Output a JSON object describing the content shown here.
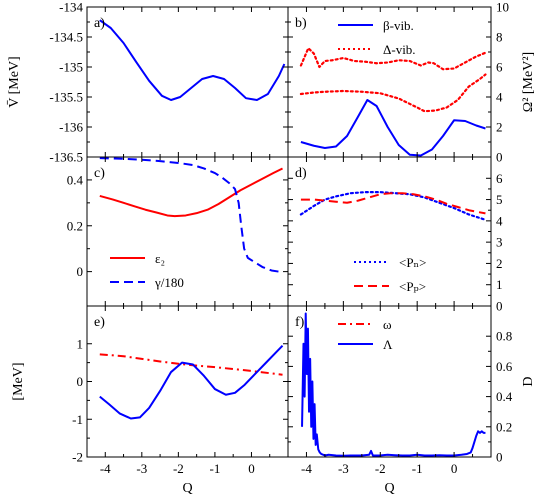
{
  "chart_data": [
    {
      "panel": "a)",
      "type": "line",
      "xlim": [
        -4.5,
        1.0
      ],
      "ylim": [
        -136.5,
        -134
      ],
      "yticks": [
        "-134",
        "-134.5",
        "-135",
        "-135.5",
        "-136",
        "-136.5"
      ],
      "ytick_values": [
        -134,
        -134.5,
        -135,
        -135.5,
        -136,
        -136.5
      ],
      "ylabel": "V̄ [MeV]",
      "series": [
        {
          "color": "#0000ff",
          "dash": "solid",
          "x": [
            -4.15,
            -3.85,
            -3.5,
            -3.15,
            -2.8,
            -2.45,
            -2.2,
            -1.95,
            -1.65,
            -1.35,
            -1.05,
            -0.75,
            -0.45,
            -0.15,
            0.15,
            0.45,
            0.75,
            0.9
          ],
          "y": [
            -134.22,
            -134.35,
            -134.6,
            -134.92,
            -135.23,
            -135.48,
            -135.55,
            -135.5,
            -135.35,
            -135.2,
            -135.15,
            -135.2,
            -135.35,
            -135.52,
            -135.55,
            -135.45,
            -135.15,
            -134.95
          ]
        }
      ]
    },
    {
      "panel": "b)",
      "type": "line",
      "xlim": [
        -4.5,
        1.0
      ],
      "ylim": [
        0,
        10
      ],
      "yticks": [
        "0",
        "2",
        "4",
        "6",
        "8",
        "10"
      ],
      "ytick_values": [
        0,
        2,
        4,
        6,
        8,
        10
      ],
      "ylabel": "Ω² [MeV²]",
      "legend_position": "top-right",
      "series": [
        {
          "name": "β-vib.",
          "color": "#0000ff",
          "dash": "solid",
          "x": [
            -4.15,
            -3.8,
            -3.5,
            -3.2,
            -2.9,
            -2.6,
            -2.35,
            -2.1,
            -1.8,
            -1.5,
            -1.2,
            -0.9,
            -0.6,
            -0.3,
            0,
            0.3,
            0.6,
            0.85
          ],
          "y": [
            1.0,
            0.75,
            0.6,
            0.7,
            1.4,
            2.7,
            3.8,
            3.4,
            2.0,
            0.8,
            0.15,
            0.1,
            0.5,
            1.4,
            2.45,
            2.4,
            2.1,
            1.9
          ]
        },
        {
          "name": "Δ-vib.",
          "color": "#ff0000",
          "dash": "dotted",
          "x": [
            -4.15,
            -3.95,
            -3.8,
            -3.65,
            -3.5,
            -3.3,
            -3.0,
            -2.7,
            -2.4,
            -2.1,
            -1.8,
            -1.5,
            -1.2,
            -0.9,
            -0.7,
            -0.55,
            -0.3,
            0,
            0.3,
            0.6,
            0.85
          ],
          "y": [
            6.1,
            7.25,
            6.9,
            6.0,
            6.4,
            6.45,
            6.6,
            6.4,
            6.35,
            6.25,
            6.3,
            6.45,
            6.4,
            6.1,
            6.3,
            6.25,
            5.85,
            5.9,
            6.3,
            6.7,
            6.95
          ]
        },
        {
          "color": "#ff0000",
          "dash": "dotted",
          "x": [
            -4.15,
            -3.8,
            -3.5,
            -3.0,
            -2.5,
            -2.0,
            -1.5,
            -1.0,
            -0.8,
            -0.5,
            -0.2,
            0.1,
            0.4,
            0.7,
            0.85
          ],
          "y": [
            4.2,
            4.3,
            4.35,
            4.4,
            4.35,
            4.25,
            3.9,
            3.3,
            3.05,
            3.1,
            3.3,
            3.8,
            4.7,
            5.2,
            5.5
          ]
        }
      ]
    },
    {
      "panel": "c)",
      "type": "line",
      "xlim": [
        -4.5,
        1.0
      ],
      "ylim": [
        -0.15,
        0.5
      ],
      "yticks": [
        "0",
        "0.2",
        "0.4"
      ],
      "ytick_values": [
        0,
        0.2,
        0.4
      ],
      "legend_position": "bottom-left",
      "series": [
        {
          "name": "ε₂",
          "color": "#ff0000",
          "dash": "solid",
          "x": [
            -4.15,
            -3.8,
            -3.5,
            -3.2,
            -2.9,
            -2.6,
            -2.3,
            -2.1,
            -1.8,
            -1.5,
            -1.2,
            -0.9,
            -0.6,
            -0.3,
            0,
            0.3,
            0.6,
            0.85
          ],
          "y": [
            0.33,
            0.315,
            0.3,
            0.285,
            0.27,
            0.258,
            0.245,
            0.242,
            0.245,
            0.255,
            0.27,
            0.295,
            0.325,
            0.355,
            0.38,
            0.405,
            0.43,
            0.45
          ]
        },
        {
          "name": "γ/180",
          "color": "#0000ff",
          "dash": "dashed",
          "x": [
            -4.15,
            -3.5,
            -3.0,
            -2.5,
            -2.0,
            -1.6,
            -1.3,
            -1.0,
            -0.8,
            -0.6,
            -0.45,
            -0.35,
            -0.28,
            -0.2,
            -0.1,
            0.1,
            0.3,
            0.55,
            0.75
          ],
          "y": [
            0.495,
            0.492,
            0.488,
            0.482,
            0.474,
            0.465,
            0.45,
            0.43,
            0.41,
            0.385,
            0.36,
            0.3,
            0.2,
            0.1,
            0.06,
            0.04,
            0.02,
            0.005,
            0.0
          ]
        }
      ]
    },
    {
      "panel": "d)",
      "type": "line",
      "xlim": [
        -4.5,
        1.0
      ],
      "ylim": [
        0,
        7
      ],
      "yticks": [
        "0",
        "1",
        "2",
        "3",
        "4",
        "5",
        "6"
      ],
      "ytick_values": [
        0,
        1,
        2,
        3,
        4,
        5,
        6
      ],
      "legend_position": "bottom-right",
      "series": [
        {
          "name": "<Pₙ>",
          "color": "#0000ff",
          "dash": "dotted",
          "x": [
            -4.15,
            -3.8,
            -3.5,
            -3.2,
            -2.8,
            -2.4,
            -2.0,
            -1.6,
            -1.2,
            -0.8,
            -0.4,
            0,
            0.4,
            0.85
          ],
          "y": [
            4.3,
            4.7,
            5.0,
            5.15,
            5.3,
            5.35,
            5.35,
            5.3,
            5.25,
            5.1,
            4.85,
            4.6,
            4.3,
            4.05
          ]
        },
        {
          "name": "<Pₚ>",
          "color": "#ff0000",
          "dash": "dashed",
          "x": [
            -4.15,
            -3.8,
            -3.5,
            -3.2,
            -2.9,
            -2.6,
            -2.3,
            -2.0,
            -1.7,
            -1.4,
            -1.1,
            -0.8,
            -0.5,
            -0.2,
            0.1,
            0.4,
            0.85
          ],
          "y": [
            5.0,
            5.0,
            4.95,
            4.9,
            4.85,
            4.95,
            5.1,
            5.25,
            5.3,
            5.3,
            5.25,
            5.15,
            5.0,
            4.8,
            4.65,
            4.5,
            4.35
          ]
        }
      ]
    },
    {
      "panel": "e)",
      "type": "line",
      "xlim": [
        -4.5,
        1.0
      ],
      "ylim": [
        -2,
        2
      ],
      "yticks": [
        "-2",
        "-1",
        "0",
        "1"
      ],
      "ytick_values": [
        -2,
        -1,
        0,
        1
      ],
      "ylabel": "[MeV]",
      "xlabel": "Q",
      "xticks": [
        "-4",
        "-3",
        "-2",
        "-1",
        "0"
      ],
      "xtick_values": [
        -4,
        -3,
        -2,
        -1,
        0
      ],
      "legend_position": "top-right",
      "series": [
        {
          "name": "ω",
          "color": "#ff0000",
          "dash": "dashdot",
          "x": [
            -4.15,
            -3.5,
            -3.0,
            -2.5,
            -2.0,
            -1.5,
            -1.0,
            -0.5,
            0,
            0.5,
            0.85
          ],
          "y": [
            0.72,
            0.67,
            0.6,
            0.53,
            0.47,
            0.42,
            0.38,
            0.33,
            0.28,
            0.22,
            0.18
          ]
        },
        {
          "name": "Λ",
          "color": "#0000ff",
          "dash": "solid",
          "x": [
            -4.15,
            -3.9,
            -3.6,
            -3.3,
            -3.05,
            -2.8,
            -2.5,
            -2.2,
            -1.9,
            -1.6,
            -1.3,
            -1.0,
            -0.7,
            -0.45,
            -0.2,
            0.1,
            0.4,
            0.7,
            0.85
          ],
          "y": [
            -0.4,
            -0.6,
            -0.85,
            -0.98,
            -0.95,
            -0.7,
            -0.25,
            0.25,
            0.5,
            0.45,
            0.15,
            -0.2,
            -0.35,
            -0.3,
            -0.1,
            0.2,
            0.5,
            0.8,
            0.95
          ]
        }
      ]
    },
    {
      "panel": "f)",
      "type": "line",
      "xlim": [
        -4.5,
        1.0
      ],
      "ylim": [
        0,
        1
      ],
      "yticks": [
        "0",
        "0.2",
        "0.4",
        "0.6",
        "0.8"
      ],
      "ytick_values": [
        0,
        0.2,
        0.4,
        0.6,
        0.8
      ],
      "ylabel": "D",
      "xlabel": "Q",
      "xticks": [
        "-4",
        "-3",
        "-2",
        "-1",
        "0"
      ],
      "xtick_values": [
        -4,
        -3,
        -2,
        -1,
        0
      ],
      "series": [
        {
          "color": "#0000ff",
          "dash": "solid",
          "x": [
            -4.12,
            -4.08,
            -4.05,
            -4.02,
            -3.99,
            -3.96,
            -3.93,
            -3.9,
            -3.87,
            -3.84,
            -3.81,
            -3.78,
            -3.75,
            -3.72,
            -3.68,
            -3.64,
            -3.6,
            -3.5,
            -3.4,
            -3.2,
            -3.0,
            -2.8,
            -2.5,
            -2.3,
            -2.25,
            -2.2,
            -2.0,
            -1.8,
            -1.6,
            -1.4,
            -1.2,
            -1.0,
            -0.8,
            -0.6,
            -0.4,
            -0.2,
            0.0,
            0.2,
            0.35,
            0.45,
            0.5,
            0.55,
            0.6,
            0.65,
            0.7,
            0.75,
            0.8,
            0.85
          ],
          "y": [
            0.2,
            0.75,
            0.4,
            0.95,
            0.55,
            0.85,
            0.3,
            0.65,
            0.2,
            0.5,
            0.12,
            0.35,
            0.08,
            0.15,
            0.05,
            0.03,
            0.02,
            0.01,
            0.015,
            0.01,
            0.008,
            0.01,
            0.01,
            0.015,
            0.04,
            0.01,
            0.01,
            0.015,
            0.012,
            0.01,
            0.01,
            0.015,
            0.01,
            0.01,
            0.012,
            0.01,
            0.01,
            0.015,
            0.02,
            0.03,
            0.06,
            0.1,
            0.14,
            0.17,
            0.16,
            0.17,
            0.16,
            0.16
          ]
        }
      ]
    }
  ]
}
